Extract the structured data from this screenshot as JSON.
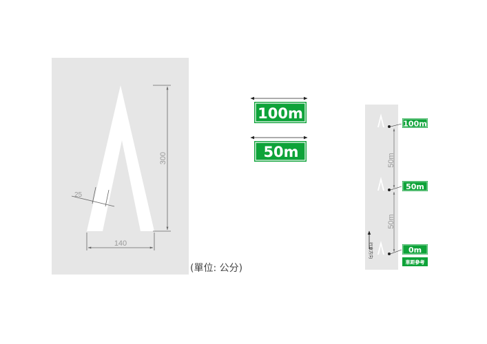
{
  "detail": {
    "height_dim": "300",
    "width_dim": "140",
    "stroke_dim": "25",
    "unit_label": "(單位: 公分)"
  },
  "signs": {
    "large_100": "100m",
    "large_50": "50m"
  },
  "layout_plan": {
    "sign_100": "100m",
    "sign_50": "50m",
    "sign_0": "0m",
    "spacing_1": "50m",
    "spacing_2": "50m",
    "direction_label": "行車方向",
    "ref_label": "車距參考"
  },
  "colors": {
    "road": "#e6e6e6",
    "marking": "#ffffff",
    "sign_green": "#0ea339",
    "dim_line": "#666666"
  }
}
